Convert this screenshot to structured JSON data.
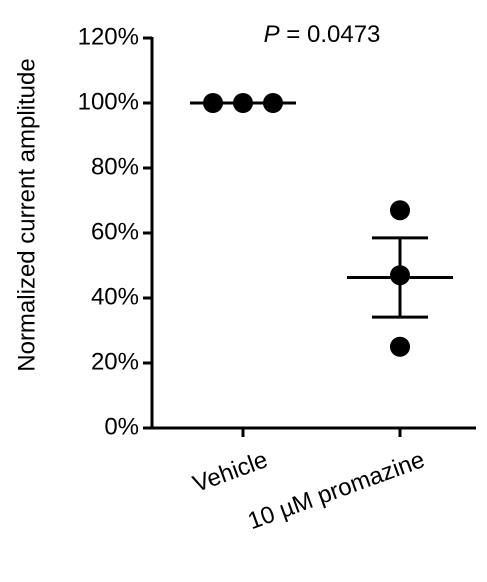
{
  "chart_data": {
    "type": "dot",
    "y_label": "Normalized current amplitude",
    "annotation": {
      "symbol": "P",
      "text": " = 0.0473"
    },
    "categories": [
      "Vehicle",
      "10 µM promazine"
    ],
    "values": [
      [
        100,
        100,
        100
      ],
      [
        67,
        47,
        25
      ]
    ],
    "mean": [
      100,
      46.3
    ],
    "sem": [
      0,
      12.2
    ],
    "color": "#000000",
    "ylim": [
      0,
      120
    ],
    "yticks": [
      {
        "value": 0,
        "label": "0%"
      },
      {
        "value": 20,
        "label": "20%"
      },
      {
        "value": 40,
        "label": "40%"
      },
      {
        "value": 60,
        "label": "60%"
      },
      {
        "value": 80,
        "label": "80%"
      },
      {
        "value": 100,
        "label": "100%"
      },
      {
        "value": 120,
        "label": "120%"
      }
    ]
  }
}
